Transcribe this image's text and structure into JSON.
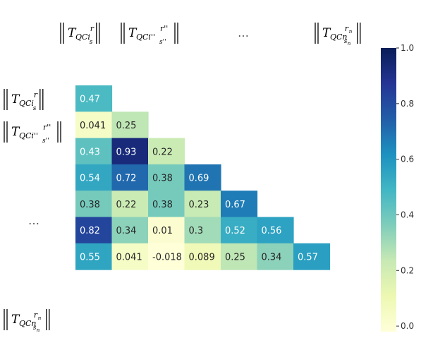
{
  "chart_data": {
    "type": "heatmap",
    "subtype": "lower-triangular correlation matrix",
    "cmap": "YlGnBu",
    "values": [
      [
        0.47
      ],
      [
        0.041,
        0.25
      ],
      [
        0.43,
        0.93,
        0.22
      ],
      [
        0.54,
        0.72,
        0.38,
        0.69
      ],
      [
        0.38,
        0.22,
        0.38,
        0.23,
        0.67
      ],
      [
        0.82,
        0.34,
        0.01,
        0.3,
        0.52,
        0.56
      ],
      [
        0.55,
        0.041,
        -0.018,
        0.089,
        0.25,
        0.34,
        0.57
      ]
    ],
    "cell_labels": [
      [
        "0.47"
      ],
      [
        "0.041",
        "0.25"
      ],
      [
        "0.43",
        "0.93",
        "0.22"
      ],
      [
        "0.54",
        "0.72",
        "0.38",
        "0.69"
      ],
      [
        "0.38",
        "0.22",
        "0.38",
        "0.23",
        "0.67"
      ],
      [
        "0.82",
        "0.34",
        "0.01",
        "0.3",
        "0.52",
        "0.56"
      ],
      [
        "0.55",
        "0.041",
        "-0.018",
        "0.089",
        "0.25",
        "0.34",
        "0.57"
      ]
    ],
    "column_labels": [
      {
        "base": "T",
        "sub": "QCi",
        "subsub": "s",
        "sup": "r"
      },
      {
        "base": "T",
        "sub": "QCi''",
        "subsub": "s''",
        "sup": "r''"
      },
      {
        "text": "…"
      },
      {
        "base": "T",
        "sub": "QCn",
        "subsub": "n",
        "subsub_prefix": "s",
        "sup": "r",
        "supsub": "n"
      }
    ],
    "row_labels": [
      {
        "base": "T",
        "sub": "QCi",
        "subsub": "s",
        "sup": "r"
      },
      {
        "base": "T",
        "sub": "QCi''",
        "subsub": "s''",
        "sup": "r''"
      },
      {
        "text": "…"
      },
      {
        "base": "T",
        "sub": "QCn",
        "subsub": "n",
        "subsub_prefix": "s",
        "sup": "r",
        "supsub": "n"
      }
    ],
    "colorbar": {
      "range": [
        -0.02,
        1.0
      ],
      "ticks": [
        0.0,
        0.2,
        0.4,
        0.6,
        0.8,
        1.0
      ],
      "tick_labels": [
        "0.0",
        "0.2",
        "0.4",
        "0.6",
        "0.8",
        "1.0"
      ]
    }
  }
}
